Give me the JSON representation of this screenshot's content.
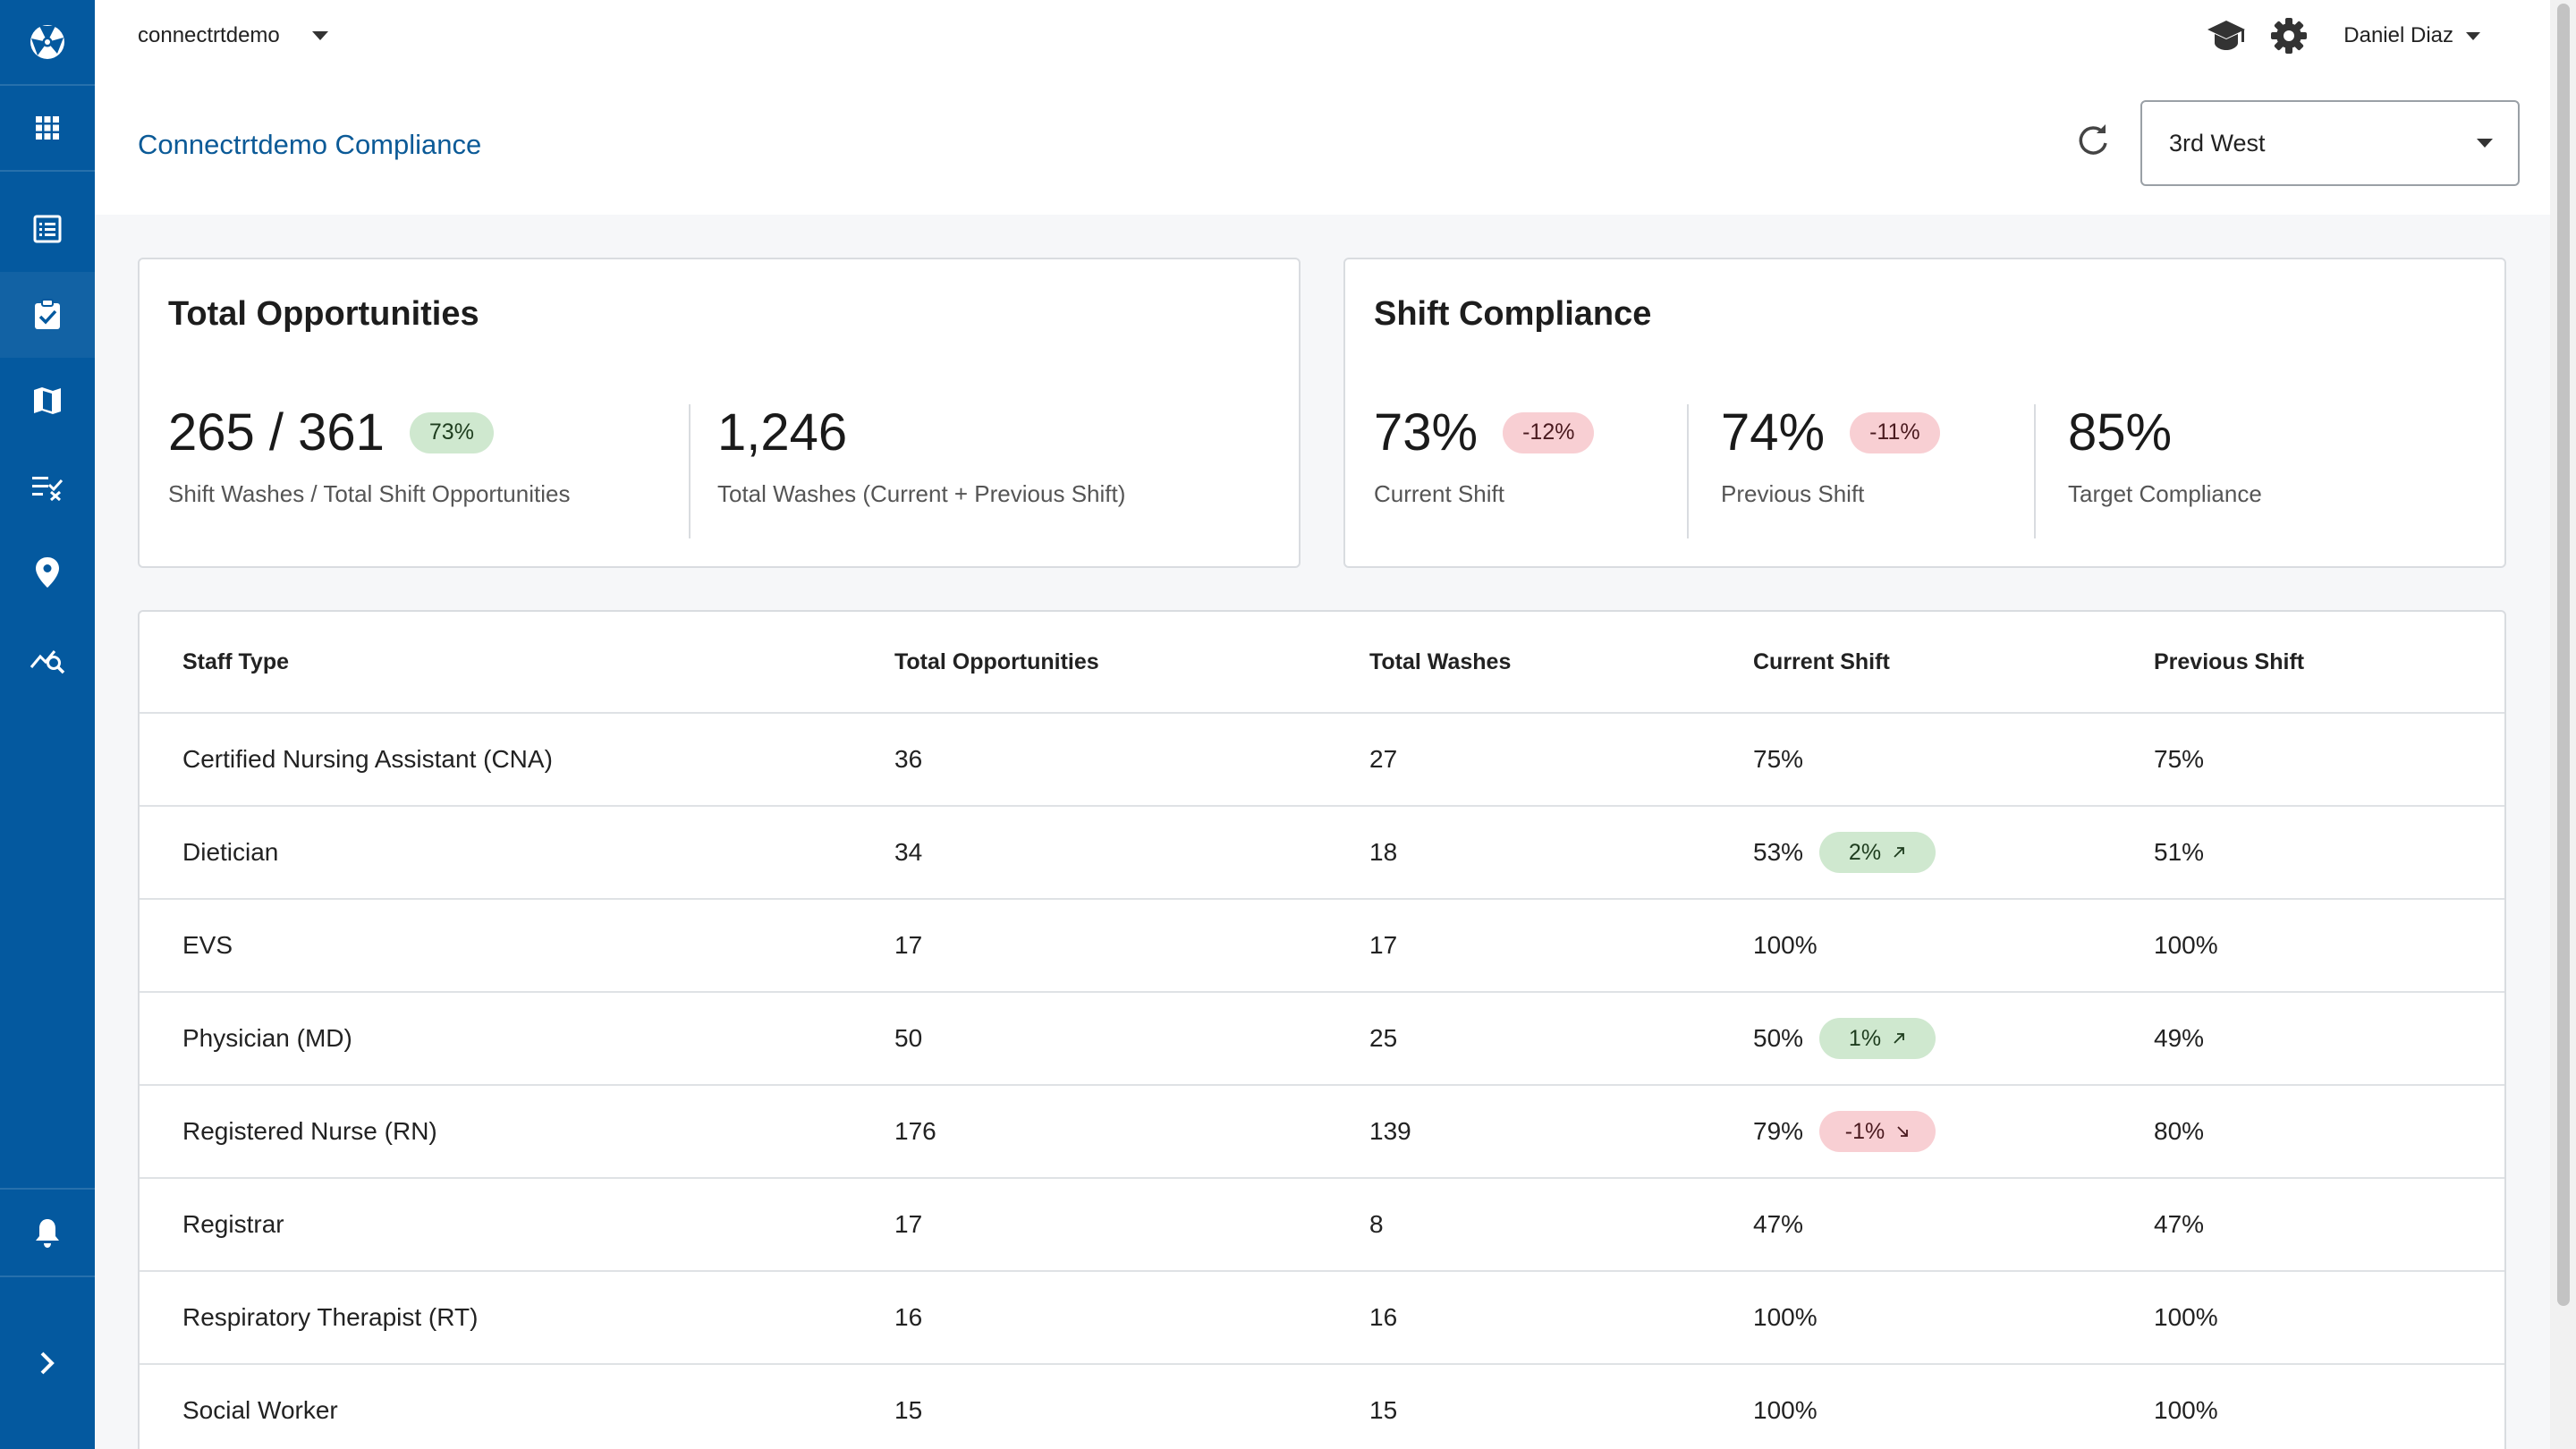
{
  "sidebar": {
    "items": [
      {
        "icon": "logo-icon"
      },
      {
        "icon": "apps-grid-icon"
      },
      {
        "icon": "list-icon"
      },
      {
        "icon": "clipboard-check-icon"
      },
      {
        "icon": "map-icon"
      },
      {
        "icon": "checklist-icon"
      },
      {
        "icon": "location-pin-icon"
      },
      {
        "icon": "analytics-search-icon"
      },
      {
        "icon": "bell-icon"
      },
      {
        "icon": "chevron-right-icon"
      }
    ],
    "color": "#04599f"
  },
  "header": {
    "org_name": "connectrtdemo",
    "user_name": "Daniel Diaz",
    "icons": [
      "graduation-cap-icon",
      "gear-icon"
    ]
  },
  "page": {
    "title": "Connectrtdemo Compliance",
    "unit_selected": "3rd West"
  },
  "total_opportunities": {
    "title": "Total Opportunities",
    "shift_ratio": "265 / 361",
    "shift_ratio_badge": "73%",
    "shift_ratio_label": "Shift Washes / Total Shift Opportunities",
    "total_washes": "1,246",
    "total_washes_label": "Total Washes (Current + Previous Shift)"
  },
  "shift_compliance": {
    "title": "Shift Compliance",
    "current_value": "73%",
    "current_badge": "-12%",
    "current_label": "Current Shift",
    "previous_value": "74%",
    "previous_badge": "-11%",
    "previous_label": "Previous Shift",
    "target_value": "85%",
    "target_label": "Target Compliance"
  },
  "table": {
    "headers": [
      "Staff Type",
      "Total Opportunities",
      "Total Washes",
      "Current Shift",
      "Previous Shift"
    ],
    "rows": [
      {
        "staff": "Certified Nursing Assistant (CNA)",
        "opps": "36",
        "washes": "27",
        "current": "75%",
        "trend": "",
        "previous": "75%"
      },
      {
        "staff": "Dietician",
        "opps": "34",
        "washes": "18",
        "current": "53%",
        "trend": "2%",
        "trend_dir": "up",
        "previous": "51%"
      },
      {
        "staff": "EVS",
        "opps": "17",
        "washes": "17",
        "current": "100%",
        "trend": "",
        "previous": "100%"
      },
      {
        "staff": "Physician (MD)",
        "opps": "50",
        "washes": "25",
        "current": "50%",
        "trend": "1%",
        "trend_dir": "up",
        "previous": "49%"
      },
      {
        "staff": "Registered Nurse (RN)",
        "opps": "176",
        "washes": "139",
        "current": "79%",
        "trend": "-1%",
        "trend_dir": "down",
        "previous": "80%"
      },
      {
        "staff": "Registrar",
        "opps": "17",
        "washes": "8",
        "current": "47%",
        "trend": "",
        "previous": "47%"
      },
      {
        "staff": "Respiratory Therapist (RT)",
        "opps": "16",
        "washes": "16",
        "current": "100%",
        "trend": "",
        "previous": "100%"
      },
      {
        "staff": "Social Worker",
        "opps": "15",
        "washes": "15",
        "current": "100%",
        "trend": "",
        "previous": "100%"
      }
    ]
  },
  "colors": {
    "brand": "#04599f",
    "title_blue": "#0b5a97",
    "pill_green": "#cfe8cf",
    "pill_red": "#f8cfd3"
  }
}
